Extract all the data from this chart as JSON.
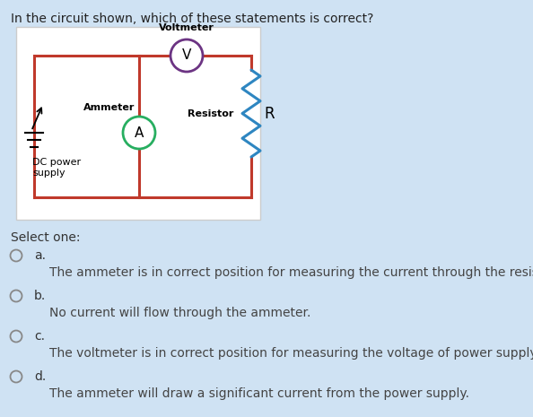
{
  "bg_color": "#cfe2f3",
  "title": "In the circuit shown, which of these statements is correct?",
  "title_fontsize": 10,
  "title_color": "#222222",
  "circuit_box_bg": "#ffffff",
  "wire_color": "#c0392b",
  "wire_lw": 2.2,
  "voltmeter_label": "Voltmeter",
  "voltmeter_circle_color": "#6c3483",
  "voltmeter_circle_lw": 2.0,
  "voltmeter_text": "V",
  "ammeter_label": "Ammeter",
  "ammeter_circle_color": "#27ae60",
  "ammeter_circle_lw": 2.0,
  "ammeter_text": "A",
  "resistor_label": "Resistor",
  "resistor_R": "R",
  "resistor_color": "#2e86c1",
  "dc_label": "DC power\nsupply",
  "select_text": "Select one:",
  "options": [
    {
      "letter": "a.",
      "text": "The ammeter is in correct position for measuring the current through the resistor."
    },
    {
      "letter": "b.",
      "text": "No current will flow through the ammeter."
    },
    {
      "letter": "c.",
      "text": "The voltmeter is in correct position for measuring the voltage of power supply."
    },
    {
      "letter": "d.",
      "text": "The ammeter will draw a significant current from the power supply."
    }
  ],
  "option_letter_fontsize": 10,
  "option_text_fontsize": 10,
  "label_fontsize": 8
}
